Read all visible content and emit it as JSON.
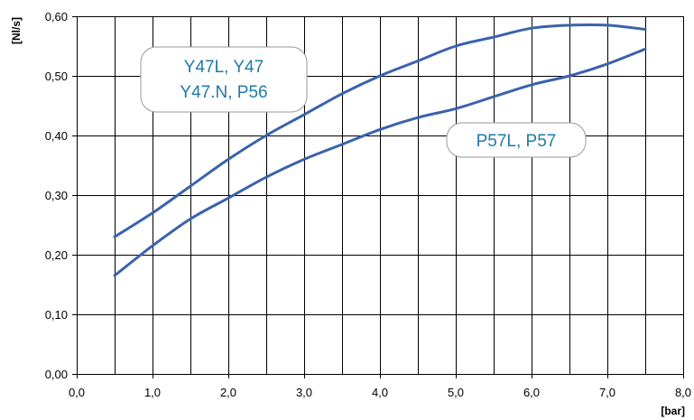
{
  "chart_data": {
    "type": "line",
    "title": "",
    "xlabel": "[bar]",
    "ylabel": "[Nl/s]",
    "xlim": [
      0,
      8
    ],
    "ylim": [
      0,
      0.6
    ],
    "x_ticks": [
      0,
      1,
      2,
      3,
      4,
      5,
      6,
      7,
      8
    ],
    "y_ticks": [
      0,
      0.1,
      0.2,
      0.3,
      0.4,
      0.5,
      0.6
    ],
    "x_tick_labels": [
      "0,0",
      "1,0",
      "2,0",
      "3,0",
      "4,0",
      "5,0",
      "6,0",
      "7,0",
      "8,0"
    ],
    "y_tick_labels": [
      "0,00",
      "0,10",
      "0,20",
      "0,30",
      "0,40",
      "0,50",
      "0,60"
    ],
    "x_minor_step": 0.5,
    "grid": true,
    "line_color": "#3a62ad",
    "series": [
      {
        "label_lines": [
          "Y47L, Y47",
          "Y47.N, P56"
        ],
        "x": [
          0.5,
          1.0,
          1.5,
          2.0,
          2.5,
          3.0,
          3.5,
          4.0,
          4.5,
          5.0,
          5.5,
          6.0,
          6.5,
          7.0,
          7.5
        ],
        "y": [
          0.23,
          0.27,
          0.315,
          0.36,
          0.4,
          0.435,
          0.47,
          0.5,
          0.525,
          0.55,
          0.565,
          0.58,
          0.585,
          0.585,
          0.578
        ]
      },
      {
        "label_lines": [
          "P57L, P57"
        ],
        "x": [
          0.5,
          1.0,
          1.5,
          2.0,
          2.5,
          3.0,
          3.5,
          4.0,
          4.5,
          5.0,
          5.5,
          6.0,
          6.5,
          7.0,
          7.5
        ],
        "y": [
          0.165,
          0.215,
          0.26,
          0.295,
          0.33,
          0.36,
          0.385,
          0.41,
          0.43,
          0.445,
          0.465,
          0.485,
          0.5,
          0.52,
          0.545
        ]
      }
    ]
  }
}
